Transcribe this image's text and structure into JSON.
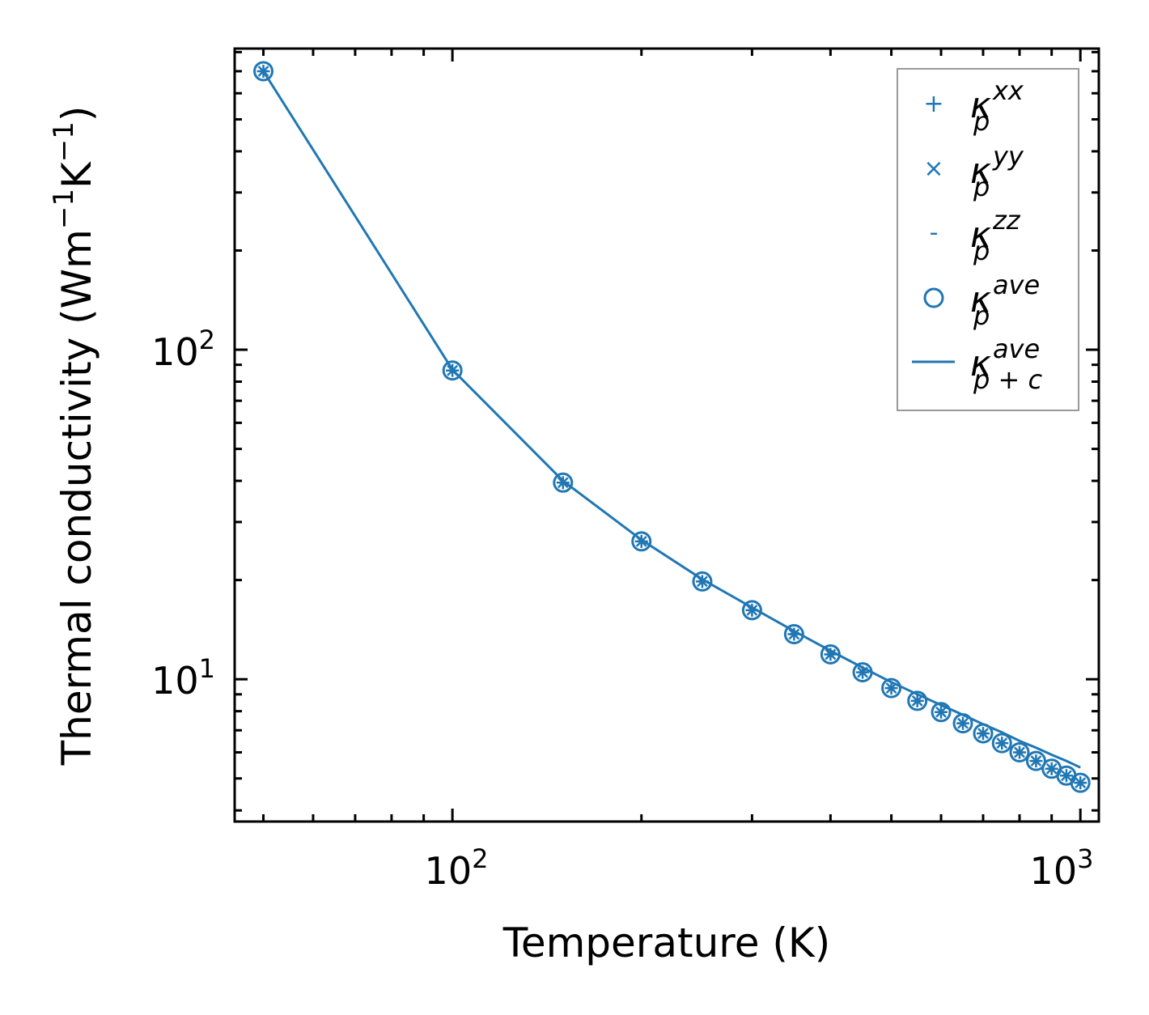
{
  "chart_data": {
    "type": "line",
    "xscale": "log",
    "yscale": "log",
    "xlim": [
      45,
      1070
    ],
    "ylim": [
      3.7,
      820
    ],
    "xlabel": "Temperature (K)",
    "ylabel": {
      "base": "Thermal conductivity (Wm",
      "exp1": "−1",
      "mid": "K",
      "exp2": "−1",
      "end": ")"
    },
    "x_tick_labels": [
      {
        "value": 100,
        "base": "10",
        "exp": "2"
      },
      {
        "value": 1000,
        "base": "10",
        "exp": "3"
      }
    ],
    "y_tick_labels": [
      {
        "value": 10,
        "base": "10",
        "exp": "1"
      },
      {
        "value": 100,
        "base": "10",
        "exp": "2"
      }
    ],
    "color": "#1f77b4",
    "x": [
      50,
      100,
      150,
      200,
      250,
      300,
      350,
      400,
      450,
      500,
      550,
      600,
      650,
      700,
      750,
      800,
      850,
      900,
      950,
      1000
    ],
    "series": [
      {
        "name": "kappa_p_xx",
        "marker": "plus",
        "values": [
          700,
          86.5,
          39.5,
          26.2,
          19.8,
          16.2,
          13.7,
          11.9,
          10.5,
          9.4,
          8.6,
          7.95,
          7.35,
          6.85,
          6.4,
          6.0,
          5.65,
          5.35,
          5.1,
          4.85
        ]
      },
      {
        "name": "kappa_p_yy",
        "marker": "x",
        "values": [
          700,
          86.5,
          39.5,
          26.2,
          19.8,
          16.2,
          13.7,
          11.9,
          10.5,
          9.4,
          8.6,
          7.95,
          7.35,
          6.85,
          6.4,
          6.0,
          5.65,
          5.35,
          5.1,
          4.85
        ]
      },
      {
        "name": "kappa_p_zz",
        "marker": "minus",
        "values": [
          700,
          86.5,
          39.5,
          26.2,
          19.8,
          16.2,
          13.7,
          11.9,
          10.5,
          9.4,
          8.6,
          7.95,
          7.35,
          6.85,
          6.4,
          6.0,
          5.65,
          5.35,
          5.1,
          4.85
        ]
      },
      {
        "name": "kappa_p_ave",
        "marker": "circle",
        "values": [
          700,
          86.5,
          39.5,
          26.2,
          19.8,
          16.2,
          13.7,
          11.9,
          10.5,
          9.4,
          8.6,
          7.95,
          7.35,
          6.85,
          6.4,
          6.0,
          5.65,
          5.35,
          5.1,
          4.85
        ]
      },
      {
        "name": "kappa_pc_ave",
        "marker": "line",
        "values": [
          700,
          87,
          40,
          26.5,
          20.1,
          16.5,
          14.0,
          12.2,
          10.85,
          9.8,
          9.0,
          8.35,
          7.8,
          7.3,
          6.9,
          6.5,
          6.2,
          5.9,
          5.65,
          5.4
        ]
      }
    ],
    "legend": {
      "position": "top-right",
      "entries": [
        {
          "symbol": "κ",
          "sub": "p",
          "sup": "xx"
        },
        {
          "symbol": "κ",
          "sub": "p",
          "sup": "yy"
        },
        {
          "symbol": "κ",
          "sub": "p",
          "sup": "zz"
        },
        {
          "symbol": "κ",
          "sub": "p",
          "sup": "ave"
        },
        {
          "symbol": "κ",
          "sub": "p + c",
          "sup": "ave"
        }
      ]
    }
  }
}
